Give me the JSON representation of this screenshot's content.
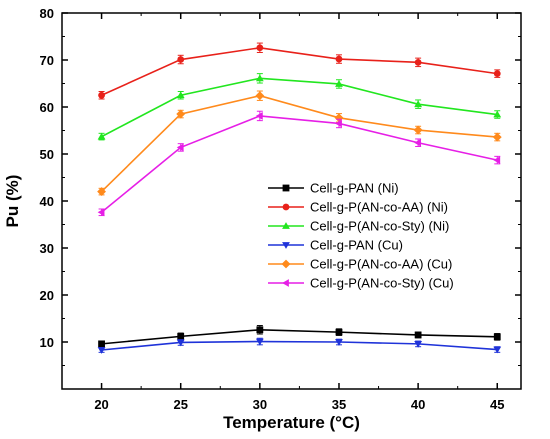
{
  "chart_data": {
    "type": "line",
    "title": "",
    "xlabel": "Temperature (°C)",
    "ylabel": "Pu (%)",
    "x": [
      20,
      25,
      30,
      35,
      40,
      45
    ],
    "xlim": [
      17.5,
      46.5
    ],
    "ylim": [
      0,
      80
    ],
    "xticks": [
      "20",
      "25",
      "30",
      "35",
      "40",
      "45"
    ],
    "yticks": [
      "10",
      "20",
      "30",
      "40",
      "50",
      "60",
      "70",
      "80"
    ],
    "grid": false,
    "legend_position": "lower-center",
    "series": [
      {
        "name": "Cell-g-PAN (Ni)",
        "color": "#000000",
        "marker": "square",
        "values": [
          9.6,
          11.2,
          12.6,
          12.1,
          11.5,
          11.1
        ],
        "errors": [
          0.6,
          0.7,
          0.9,
          0.7,
          0.6,
          0.7
        ]
      },
      {
        "name": "Cell-g-P(AN-co-AA) (Ni)",
        "color": "#e8211a",
        "marker": "circle",
        "values": [
          62.5,
          70.1,
          72.6,
          70.2,
          69.5,
          67.1
        ],
        "errors": [
          0.8,
          0.9,
          1.0,
          0.9,
          0.9,
          0.8
        ]
      },
      {
        "name": "Cell-g-P(AN-co-Sty) (Ni)",
        "color": "#22e61f",
        "marker": "triangle-up",
        "values": [
          53.7,
          62.5,
          66.1,
          64.9,
          60.6,
          58.4
        ],
        "errors": [
          0.7,
          0.8,
          1.0,
          0.9,
          0.9,
          0.8
        ]
      },
      {
        "name": "Cell-g-PAN (Cu)",
        "color": "#1f33d9",
        "marker": "triangle-down",
        "values": [
          8.3,
          9.9,
          10.1,
          10.0,
          9.6,
          8.4
        ],
        "errors": [
          0.5,
          0.6,
          0.7,
          0.6,
          0.6,
          0.6
        ]
      },
      {
        "name": "Cell-g-P(AN-co-AA) (Cu)",
        "color": "#ff8a1c",
        "marker": "diamond",
        "values": [
          42.0,
          58.5,
          62.4,
          57.7,
          55.1,
          53.6
        ],
        "errors": [
          0.7,
          0.8,
          1.0,
          0.9,
          0.8,
          0.8
        ]
      },
      {
        "name": "Cell-g-P(AN-co-Sty) (Cu)",
        "color": "#e61fe6",
        "marker": "triangle-left",
        "values": [
          37.6,
          51.4,
          58.1,
          56.5,
          52.4,
          48.7
        ],
        "errors": [
          0.7,
          0.8,
          1.0,
          0.9,
          0.8,
          0.8
        ]
      }
    ]
  }
}
